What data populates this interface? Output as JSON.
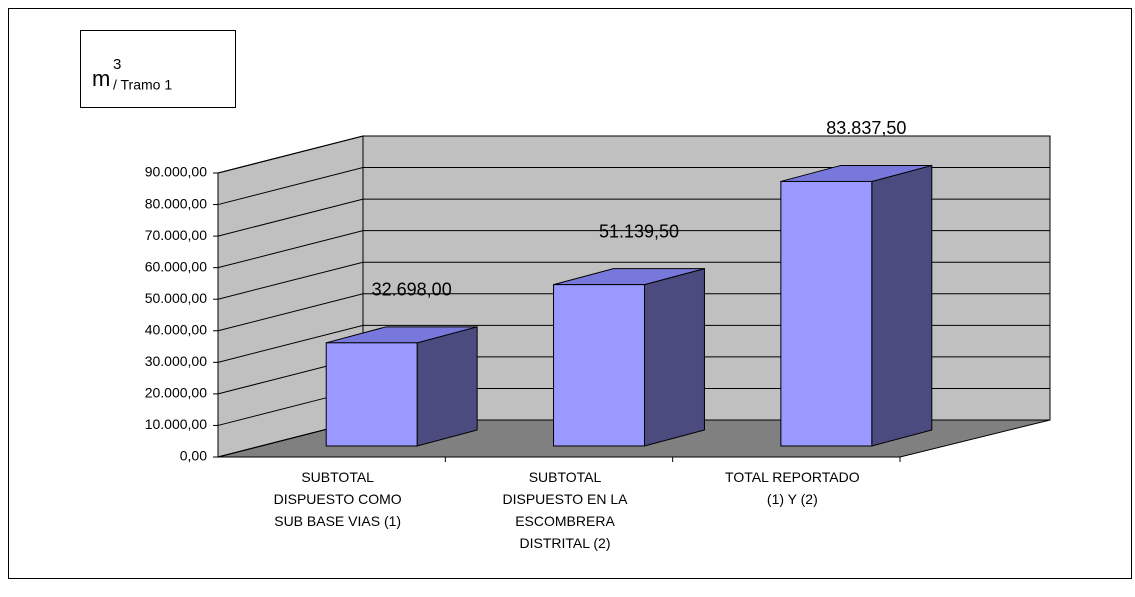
{
  "chart_data": {
    "type": "bar3d",
    "title": "m",
    "title_superscript": "3",
    "title_subscript": "/ Tramo 1",
    "categories": [
      "SUBTOTAL DISPUESTO COMO SUB BASE VIAS (1)",
      "SUBTOTAL DISPUESTO EN LA ESCOMBRERA DISTRITAL (2)",
      "TOTAL REPORTADO (1) Y (2)"
    ],
    "values": [
      32698,
      51139.5,
      83837.5
    ],
    "value_labels": [
      "32.698,00",
      "51.139,50",
      "83.837,50"
    ],
    "color": "#9999ff",
    "side_color": "#4b4b80",
    "top_color": "#7878dc",
    "ylim": [
      0,
      90000
    ],
    "yticks": [
      {
        "value": 0,
        "label": "0,00"
      },
      {
        "value": 10000,
        "label": "10.000,00"
      },
      {
        "value": 20000,
        "label": "20.000,00"
      },
      {
        "value": 30000,
        "label": "30.000,00"
      },
      {
        "value": 40000,
        "label": "40.000,00"
      },
      {
        "value": 50000,
        "label": "50.000,00"
      },
      {
        "value": 60000,
        "label": "60.000,00"
      },
      {
        "value": 70000,
        "label": "70.000,00"
      },
      {
        "value": 80000,
        "label": "80.000,00"
      },
      {
        "value": 90000,
        "label": "90.000,00"
      }
    ],
    "grid": true
  }
}
